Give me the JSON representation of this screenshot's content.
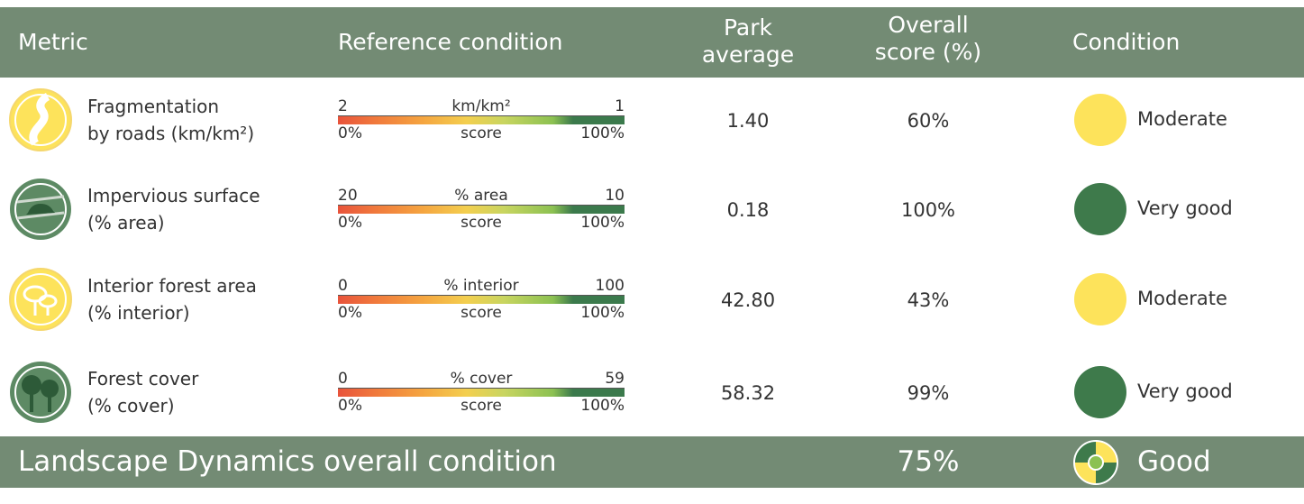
{
  "header": {
    "metric": "Metric",
    "reference": "Reference condition",
    "park_average": [
      "Park",
      "average"
    ],
    "overall_score": [
      "Overall",
      "score (%)"
    ],
    "condition": "Condition"
  },
  "rows": [
    {
      "name": [
        "Fragmentation",
        "by roads (km/km²)"
      ],
      "ref_left": "2",
      "ref_unit": "km/km²",
      "ref_right": "1",
      "score_left": "0%",
      "score_label": "score",
      "score_right": "100%",
      "park_average": "1.40",
      "overall_score": "60%",
      "condition": "Moderate",
      "color": "#fde35b"
    },
    {
      "name": [
        "Impervious surface",
        "(% area)"
      ],
      "ref_left": "20",
      "ref_unit": "% area",
      "ref_right": "10",
      "score_left": "0%",
      "score_label": "score",
      "score_right": "100%",
      "park_average": "0.18",
      "overall_score": "100%",
      "condition": "Very good",
      "color": "#3e7a4b"
    },
    {
      "name": [
        "Interior forest area",
        "(% interior)"
      ],
      "ref_left": "0",
      "ref_unit": "% interior",
      "ref_right": "100",
      "score_left": "0%",
      "score_label": "score",
      "score_right": "100%",
      "park_average": "42.80",
      "overall_score": "43%",
      "condition": "Moderate",
      "color": "#fde35b"
    },
    {
      "name": [
        "Forest cover",
        "(% cover)"
      ],
      "ref_left": "0",
      "ref_unit": "% cover",
      "ref_right": "59",
      "score_left": "0%",
      "score_label": "score",
      "score_right": "100%",
      "park_average": "58.32",
      "overall_score": "99%",
      "condition": "Very good",
      "color": "#3e7a4b"
    }
  ],
  "footer": {
    "title": "Landscape Dynamics overall condition",
    "overall_score": "75%",
    "condition": "Good"
  }
}
